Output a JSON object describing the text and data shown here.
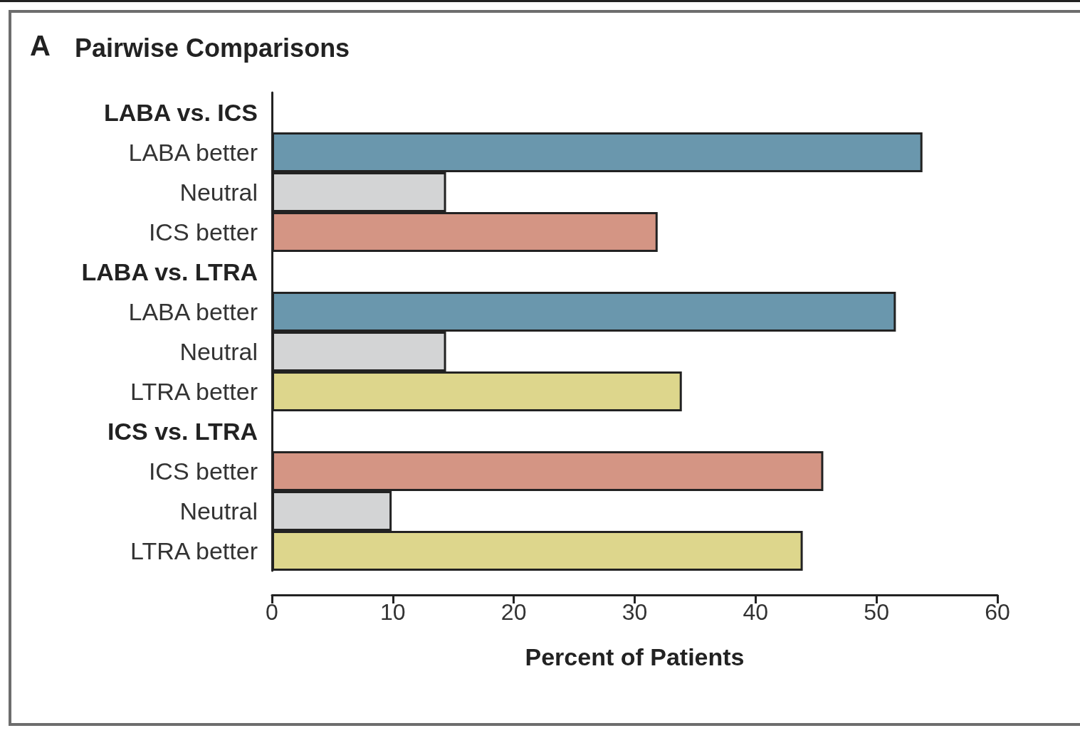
{
  "chart_data": {
    "type": "bar",
    "orientation": "horizontal",
    "title": "Pairwise Comparisons",
    "annotations": [
      "A"
    ],
    "xlabel": "Percent of Patients",
    "categories": [
      "LABA vs. ICS",
      "LABA better",
      "Neutral",
      "ICS better",
      "LABA vs. LTRA",
      "LABA better",
      "Neutral",
      "LTRA better",
      "ICS vs. LTRA",
      "ICS better",
      "Neutral",
      "LTRA better"
    ],
    "values": [
      null,
      53.8,
      14.4,
      31.9,
      null,
      51.6,
      14.4,
      33.9,
      null,
      45.6,
      9.9,
      43.9
    ],
    "colors": [
      null,
      "#6a97ad",
      "#d3d4d5",
      "#d49584",
      null,
      "#6a97ad",
      "#d3d4d5",
      "#ddd68c",
      null,
      "#d49584",
      "#d3d4d5",
      "#ddd68c"
    ],
    "xlim": [
      0,
      60
    ],
    "xticks": [
      0,
      10,
      20,
      30,
      40,
      50,
      60
    ],
    "grid": false
  }
}
